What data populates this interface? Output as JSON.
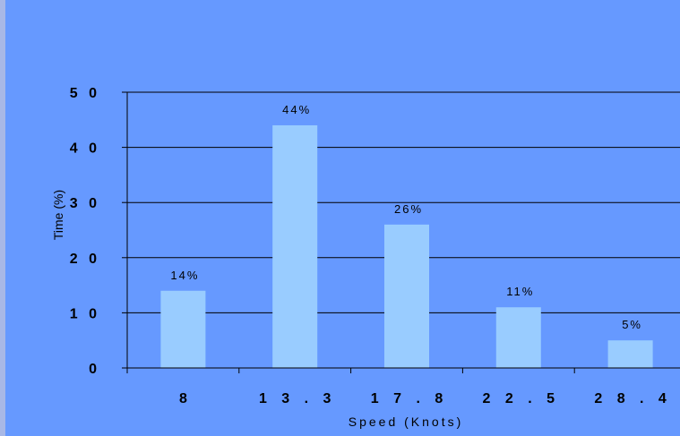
{
  "chart_data": {
    "type": "bar",
    "categories": [
      "8",
      "13.3",
      "17.8",
      "22.5",
      "28.4"
    ],
    "category_tick_labels": [
      "8",
      "1 3 . 3",
      "1 7 . 8",
      "2 2 . 5",
      "2 8 . 4"
    ],
    "values": [
      14,
      44,
      26,
      11,
      5
    ],
    "data_labels": [
      "14%",
      "44%",
      "26%",
      "11%",
      "5%"
    ],
    "xlabel": "Speed (Knots)",
    "ylabel": "Time (%)",
    "ylim": [
      0,
      50
    ],
    "yticks": [
      0,
      10,
      20,
      30,
      40,
      50
    ],
    "ytick_labels": [
      "0",
      "1 0",
      "2 0",
      "3 0",
      "4 0",
      "5 0"
    ],
    "grid": true,
    "colors": {
      "background": "#6699ff",
      "bar": "#99ccff",
      "gridline": "#000000"
    }
  }
}
